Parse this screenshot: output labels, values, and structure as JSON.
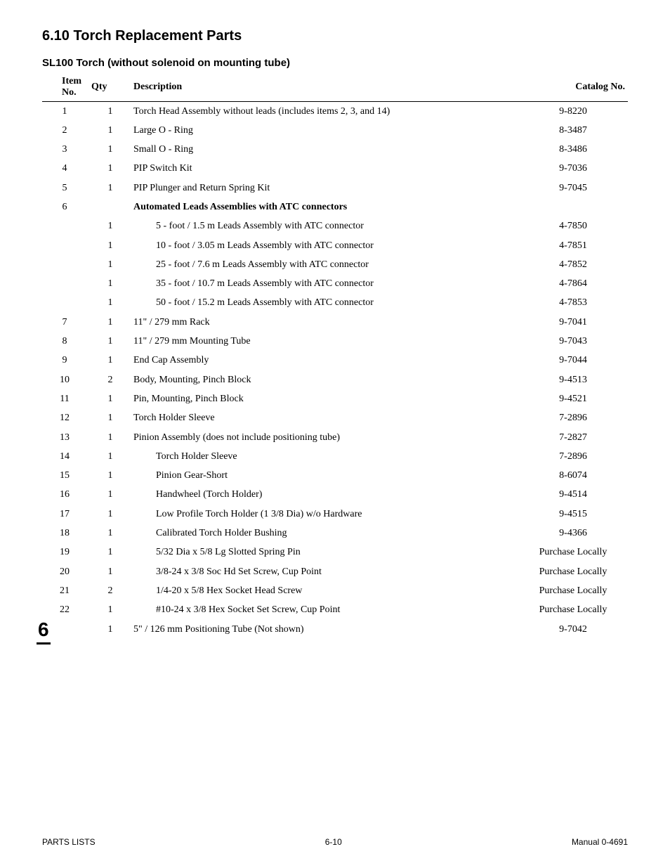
{
  "section_number": "6.10",
  "section_title": "Torch Replacement Parts",
  "subtitle": "SL100 Torch (without solenoid on mounting tube)",
  "headers": {
    "item": "Item No.",
    "qty": "Qty",
    "desc": "Description",
    "cat": "Catalog No."
  },
  "rows": [
    {
      "item": "1",
      "qty": "1",
      "desc": "Torch Head Assembly without leads (includes items 2, 3, and 14)",
      "cat": "9-8220",
      "indent": 0
    },
    {
      "item": "2",
      "qty": "1",
      "desc": "Large O - Ring",
      "cat": "8-3487",
      "indent": 0
    },
    {
      "item": "3",
      "qty": "1",
      "desc": "Small O - Ring",
      "cat": "8-3486",
      "indent": 0
    },
    {
      "item": "4",
      "qty": "1",
      "desc": "PIP Switch Kit",
      "cat": "9-7036",
      "indent": 0
    },
    {
      "item": "5",
      "qty": "1",
      "desc": "PIP Plunger and Return Spring Kit",
      "cat": "9-7045",
      "indent": 0
    },
    {
      "item": "6",
      "qty": "",
      "desc": "Automated Leads Assemblies with ATC  connectors",
      "cat": "",
      "indent": 0,
      "bold": true
    },
    {
      "item": "",
      "qty": "1",
      "desc": "5 - foot / 1.5 m Leads Assembly with ATC connector",
      "cat": "4-7850",
      "indent": 1
    },
    {
      "item": "",
      "qty": "1",
      "desc": "10 - foot / 3.05 m Leads Assembly with ATC connector",
      "cat": "4-7851",
      "indent": 1
    },
    {
      "item": "",
      "qty": "1",
      "desc": "25 - foot / 7.6 m Leads Assembly with ATC connector",
      "cat": "4-7852",
      "indent": 1
    },
    {
      "item": "",
      "qty": "1",
      "desc": "35 - foot / 10.7 m Leads Assembly with ATC connector",
      "cat": "4-7864",
      "indent": 1
    },
    {
      "item": "",
      "qty": "1",
      "desc": "50 - foot / 15.2 m Leads Assembly with ATC connector",
      "cat": "4-7853",
      "indent": 1
    },
    {
      "item": "7",
      "qty": "1",
      "desc": "11\" / 279 mm Rack",
      "cat": "9-7041",
      "indent": 0
    },
    {
      "item": "8",
      "qty": "1",
      "desc": "11\" / 279 mm Mounting Tube",
      "cat": "9-7043",
      "indent": 0
    },
    {
      "item": "9",
      "qty": "1",
      "desc": "End Cap Assembly",
      "cat": "9-7044",
      "indent": 0
    },
    {
      "item": "10",
      "qty": "2",
      "desc": "Body, Mounting, Pinch Block",
      "cat": "9-4513",
      "indent": 0
    },
    {
      "item": "11",
      "qty": "1",
      "desc": "Pin, Mounting, Pinch Block",
      "cat": "9-4521",
      "indent": 0
    },
    {
      "item": "12",
      "qty": "1",
      "desc": "Torch Holder Sleeve",
      "cat": "7-2896",
      "indent": 0
    },
    {
      "item": "13",
      "qty": "1",
      "desc": "Pinion Assembly (does not include positioning tube)",
      "cat": "7-2827",
      "indent": 0
    },
    {
      "item": "14",
      "qty": "1",
      "desc": "Torch Holder Sleeve",
      "cat": "7-2896",
      "indent": 1
    },
    {
      "item": "15",
      "qty": "1",
      "desc": "Pinion Gear-Short",
      "cat": "8-6074",
      "indent": 1
    },
    {
      "item": "16",
      "qty": "1",
      "desc": "Handwheel (Torch Holder)",
      "cat": "9-4514",
      "indent": 1
    },
    {
      "item": "17",
      "qty": "1",
      "desc": "Low Profile Torch Holder (1 3/8 Dia) w/o Hardware",
      "cat": "9-4515",
      "indent": 1
    },
    {
      "item": "18",
      "qty": "1",
      "desc": "Calibrated Torch Holder Bushing",
      "cat": "9-4366",
      "indent": 1
    },
    {
      "item": "19",
      "qty": "1",
      "desc": "5/32 Dia x 5/8 Lg Slotted Spring Pin",
      "cat": "Purchase Locally",
      "indent": 1
    },
    {
      "item": "20",
      "qty": "1",
      "desc": "3/8-24 x 3/8 Soc Hd Set Screw, Cup Point",
      "cat": "Purchase Locally",
      "indent": 1
    },
    {
      "item": "21",
      "qty": "2",
      "desc": "1/4-20 x 5/8 Hex Socket Head Screw",
      "cat": "Purchase Locally",
      "indent": 1
    },
    {
      "item": "22",
      "qty": "1",
      "desc": "#10-24 x 3/8 Hex Socket Set Screw, Cup Point",
      "cat": "Purchase Locally",
      "indent": 1
    },
    {
      "item": "",
      "qty": "1",
      "desc": "5\" / 126 mm Positioning Tube (Not shown)",
      "cat": "9-7042",
      "indent": 0
    }
  ],
  "side_section": "6",
  "footer": {
    "left": "PARTS LISTS",
    "center": "6-10",
    "right": "Manual 0-4691"
  }
}
